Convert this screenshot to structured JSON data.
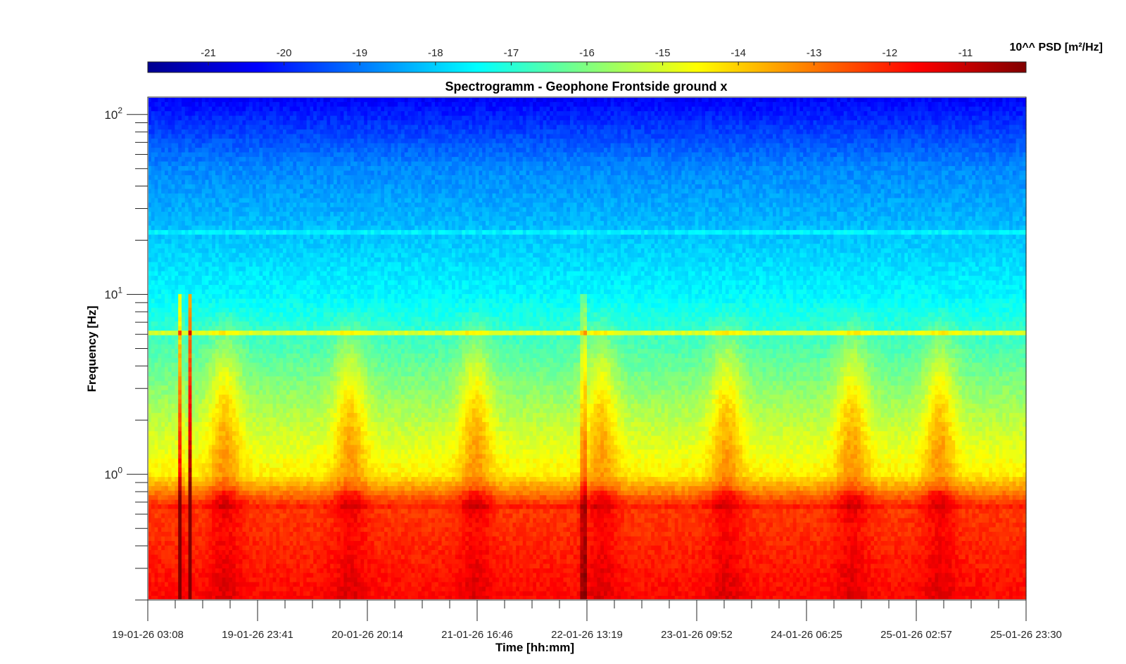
{
  "chart_data": {
    "type": "heatmap",
    "title": "Spectrogramm - Geophone Frontside ground x",
    "xlabel": "Time [hh:mm]",
    "ylabel": "Frequency [Hz]",
    "y_scale": "log",
    "ylim": [
      0.2,
      125
    ],
    "x_ticks": [
      "19-01-26 03:08",
      "19-01-26 23:41",
      "20-01-26 20:14",
      "21-01-26 16:46",
      "22-01-26 13:19",
      "23-01-26 09:52",
      "24-01-26 06:25",
      "25-01-26 02:57",
      "25-01-26 23:30"
    ],
    "y_ticks": [
      {
        "base": "10",
        "exp": "0",
        "value": 1
      },
      {
        "base": "10",
        "exp": "1",
        "value": 10
      },
      {
        "base": "10",
        "exp": "2",
        "value": 100
      }
    ],
    "colorbar": {
      "label": "10^^ PSD [m²/Hz]",
      "colormap": "jet",
      "range": [
        -21.8,
        -10.2
      ],
      "ticks": [
        "-21",
        "-20",
        "-19",
        "-18",
        "-17",
        "-16",
        "-15",
        "-14",
        "-13",
        "-12",
        "-11"
      ]
    },
    "features": {
      "persistent_line_hz": 6,
      "spike_events_day_fraction": [
        0.32,
        0.25,
        3.46
      ],
      "daytime_activity_bursts_centers_day": [
        0.6,
        1.6,
        2.6,
        3.6,
        4.6,
        5.6,
        6.3
      ]
    }
  }
}
